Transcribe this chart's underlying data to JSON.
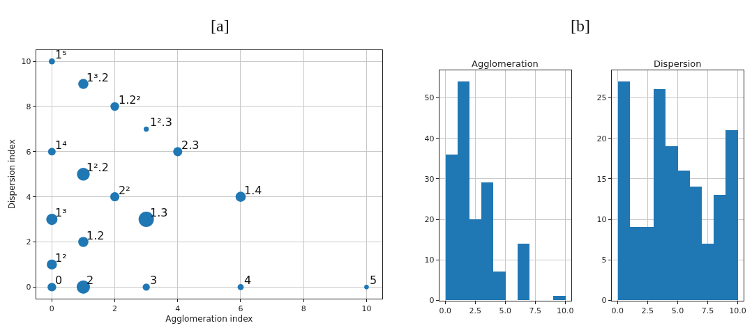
{
  "chart_data": [
    {
      "type": "bubble",
      "title": "[a]",
      "xlabel": "Agglomeration index",
      "ylabel": "Dispersion index",
      "color": "#1f77b4",
      "grid": true,
      "x": [
        0,
        1,
        2,
        3,
        0,
        4,
        1,
        2,
        6,
        0,
        3,
        1,
        0,
        0,
        1,
        3,
        6,
        10
      ],
      "values": [
        10,
        9,
        8,
        7,
        6,
        6,
        5,
        4,
        4,
        3,
        3,
        2,
        1,
        0,
        0,
        0,
        0,
        0
      ],
      "sizes": [
        0.16,
        0.44,
        0.32,
        0.11,
        0.25,
        0.36,
        0.69,
        0.36,
        0.44,
        0.54,
        1,
        0.44,
        0.44,
        0.32,
        0.75,
        0.22,
        0.16,
        0.09
      ],
      "xlim": [
        -0.5,
        10.5
      ],
      "ylim": [
        -0.5,
        10.5
      ],
      "xticks": [
        0,
        2,
        4,
        6,
        8,
        10
      ],
      "yticks": [
        0,
        2,
        4,
        6,
        8,
        10
      ],
      "annotations": [
        {
          "text": "1⁵",
          "x": 0,
          "y": 10
        },
        {
          "text": "1³.2",
          "x": 1,
          "y": 9
        },
        {
          "text": "1.2²",
          "x": 2,
          "y": 8
        },
        {
          "text": "1².3",
          "x": 3,
          "y": 7
        },
        {
          "text": "1⁴",
          "x": 0,
          "y": 6
        },
        {
          "text": "2.3",
          "x": 4,
          "y": 6
        },
        {
          "text": "1².2",
          "x": 1,
          "y": 5
        },
        {
          "text": "2²",
          "x": 2,
          "y": 4
        },
        {
          "text": "1.4",
          "x": 6,
          "y": 4
        },
        {
          "text": "1³",
          "x": 0,
          "y": 3
        },
        {
          "text": "1.3",
          "x": 3,
          "y": 3
        },
        {
          "text": "1.2",
          "x": 1,
          "y": 2
        },
        {
          "text": "1²",
          "x": 0,
          "y": 1
        },
        {
          "text": "0",
          "x": 0,
          "y": 0
        },
        {
          "text": "2",
          "x": 1,
          "y": 0
        },
        {
          "text": "3",
          "x": 3,
          "y": 0
        },
        {
          "text": "4",
          "x": 6,
          "y": 0
        },
        {
          "text": "5",
          "x": 10,
          "y": 0
        }
      ]
    },
    {
      "type": "histogram",
      "title": "Agglomeration",
      "annotations": [
        "[b]"
      ],
      "color": "#1f77b4",
      "grid": true,
      "bins": [
        0,
        1,
        2,
        3,
        4,
        5,
        6,
        7,
        8,
        9,
        10
      ],
      "values": [
        36,
        54,
        20,
        29,
        7,
        0,
        14,
        0,
        0,
        1
      ],
      "xlim": [
        -0.5,
        10.5
      ],
      "ylim": [
        0,
        56.7
      ],
      "xticks": [
        {
          "value": 0,
          "label": "0.0"
        },
        {
          "value": 2.5,
          "label": "2.5"
        },
        {
          "value": 5,
          "label": "5.0"
        },
        {
          "value": 7.5,
          "label": "7.5"
        },
        {
          "value": 10,
          "label": "10.0"
        }
      ],
      "yticks": [
        0,
        10,
        20,
        30,
        40,
        50
      ]
    },
    {
      "type": "histogram",
      "title": "Dispersion",
      "color": "#1f77b4",
      "grid": true,
      "bins": [
        0,
        1,
        2,
        3,
        4,
        5,
        6,
        7,
        8,
        9,
        10
      ],
      "values": [
        27,
        9,
        9,
        26,
        19,
        16,
        14,
        7,
        13,
        21
      ],
      "xlim": [
        -0.5,
        10.5
      ],
      "ylim": [
        0,
        28.35
      ],
      "xticks": [
        {
          "value": 0,
          "label": "0.0"
        },
        {
          "value": 2.5,
          "label": "2.5"
        },
        {
          "value": 5,
          "label": "5.0"
        },
        {
          "value": 7.5,
          "label": "7.5"
        },
        {
          "value": 10,
          "label": "10.0"
        }
      ],
      "yticks": [
        0,
        5,
        10,
        15,
        20,
        25
      ]
    }
  ]
}
